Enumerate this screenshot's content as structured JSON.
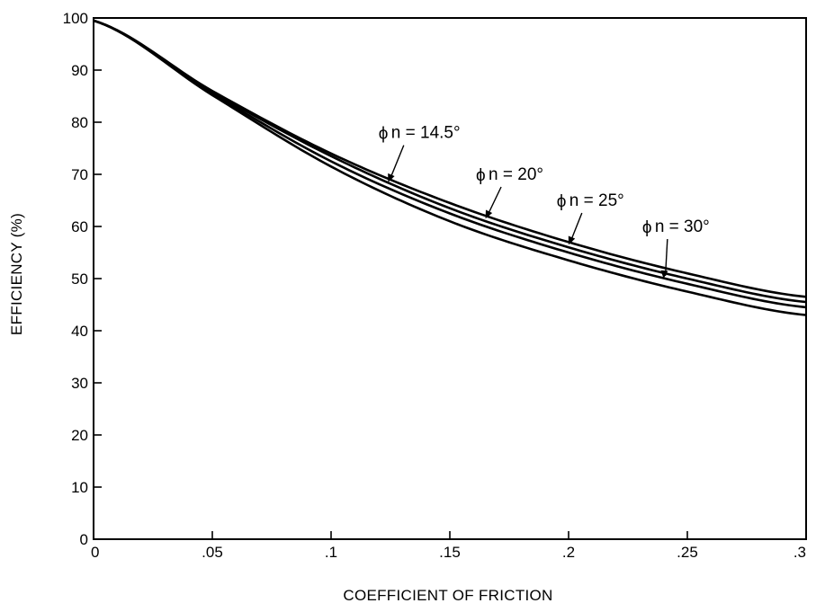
{
  "chart_data": {
    "type": "line",
    "title": "",
    "xlabel": "COEFFICIENT OF FRICTION",
    "ylabel": "EFFICIENCY (%)",
    "xlim": [
      0,
      0.3
    ],
    "ylim": [
      0,
      100
    ],
    "grid": false,
    "x_ticks": [
      0,
      0.05,
      0.1,
      0.15,
      0.2,
      0.25,
      0.3
    ],
    "x_tick_labels": [
      "0",
      ".05",
      ".1",
      ".15",
      ".2",
      ".25",
      ".3"
    ],
    "y_ticks": [
      0,
      10,
      20,
      30,
      40,
      50,
      60,
      70,
      80,
      90,
      100
    ],
    "y_tick_labels": [
      "0",
      "10",
      "20",
      "30",
      "40",
      "50",
      "60",
      "70",
      "80",
      "90",
      "100"
    ],
    "x": [
      0,
      0.05,
      0.1,
      0.15,
      0.2,
      0.25,
      0.3
    ],
    "series": [
      {
        "name": "ϕn = 14.5°",
        "values": [
          99.5,
          86,
          74,
          64.5,
          57,
          51,
          46.5
        ]
      },
      {
        "name": "ϕn = 20°",
        "values": [
          99.5,
          85.8,
          73.5,
          63.5,
          56,
          50,
          45.5
        ]
      },
      {
        "name": "ϕn = 25°",
        "values": [
          99.5,
          85.5,
          72.5,
          62.5,
          55,
          49,
          44.5
        ]
      },
      {
        "name": "ϕn = 30°",
        "values": [
          99.5,
          85.2,
          71.5,
          61,
          53.5,
          47.5,
          43
        ]
      }
    ],
    "annotations": [
      {
        "phi": "ϕ",
        "text": "n = 14.5°",
        "series": 0,
        "label_x": 0.12,
        "label_y": 78,
        "point_x": 0.124,
        "arrow_to_y": 68.5
      },
      {
        "phi": "ϕ",
        "text": "n = 20°",
        "series": 1,
        "label_x": 0.161,
        "label_y": 70,
        "point_x": 0.165,
        "arrow_to_y": 61.5
      },
      {
        "phi": "ϕ",
        "text": "n = 25°",
        "series": 2,
        "label_x": 0.195,
        "label_y": 65,
        "point_x": 0.2,
        "arrow_to_y": 56.5
      },
      {
        "phi": "ϕ",
        "text": "n = 30°",
        "series": 3,
        "label_x": 0.231,
        "label_y": 60,
        "point_x": 0.24,
        "arrow_to_y": 50
      }
    ]
  }
}
